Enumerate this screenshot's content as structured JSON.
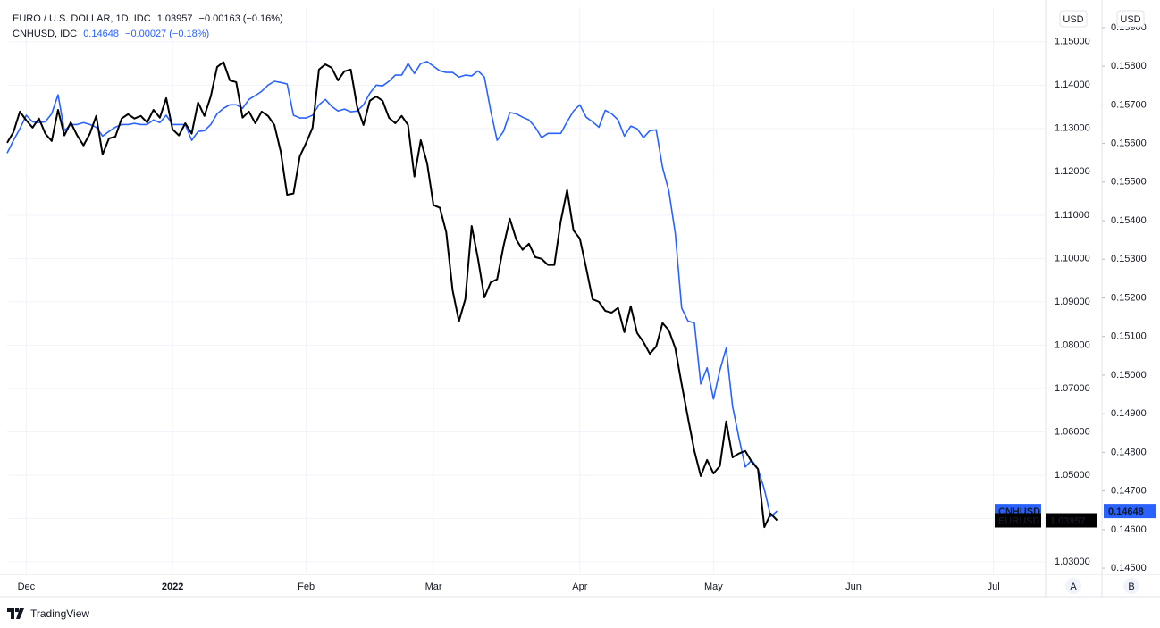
{
  "chart_data": {
    "type": "line",
    "x": [
      0,
      1,
      2,
      3,
      4,
      5,
      6,
      7,
      8,
      9,
      10,
      11,
      12,
      13,
      14,
      15,
      16,
      17,
      18,
      19,
      20,
      21,
      22,
      23,
      24,
      25,
      26,
      27,
      28,
      29,
      30,
      31,
      32,
      33,
      34,
      35,
      36,
      37,
      38,
      39,
      40,
      41,
      42,
      43,
      44,
      45,
      46,
      47,
      48,
      49,
      50,
      51,
      52,
      53,
      54,
      55,
      56,
      57,
      58,
      59,
      60,
      61,
      62,
      63,
      64,
      65,
      66,
      67,
      68,
      69,
      70,
      71,
      72,
      73,
      74,
      75,
      76,
      77,
      78,
      79,
      80,
      81,
      82,
      83,
      84,
      85,
      86,
      87,
      88,
      89,
      90,
      91,
      92,
      93,
      94,
      95,
      96,
      97,
      98,
      99,
      100,
      101,
      102,
      103,
      104,
      105,
      106,
      107,
      108,
      109,
      110,
      111,
      112,
      113,
      114,
      115,
      116,
      117,
      118,
      119,
      120,
      121
    ],
    "xlim": [
      0,
      163.2
    ],
    "xticks": [
      {
        "value": 3,
        "label": "Dec"
      },
      {
        "value": 26,
        "label": "2022"
      },
      {
        "value": 47,
        "label": "Feb"
      },
      {
        "value": 67,
        "label": "Mar"
      },
      {
        "value": 90,
        "label": "Apr"
      },
      {
        "value": 111,
        "label": "May"
      },
      {
        "value": 133,
        "label": "Jun"
      },
      {
        "value": 155,
        "label": "Jul"
      }
    ],
    "ylim": [
      1.0271,
      1.158
    ],
    "yticks": [
      {
        "value": 1.03,
        "label": "1.03000"
      },
      {
        "value": 1.04,
        "label": "1.04000"
      },
      {
        "value": 1.05,
        "label": "1.05000"
      },
      {
        "value": 1.06,
        "label": "1.06000"
      },
      {
        "value": 1.07,
        "label": "1.07000"
      },
      {
        "value": 1.08,
        "label": "1.08000"
      },
      {
        "value": 1.09,
        "label": "1.09000"
      },
      {
        "value": 1.1,
        "label": "1.10000"
      },
      {
        "value": 1.11,
        "label": "1.11000"
      },
      {
        "value": 1.12,
        "label": "1.12000"
      },
      {
        "value": 1.13,
        "label": "1.13000"
      },
      {
        "value": 1.14,
        "label": "1.14000"
      },
      {
        "value": 1.15,
        "label": "1.15000"
      }
    ],
    "y2lim": [
      0.14484,
      0.15953
    ],
    "y2ticks": [
      {
        "value": 0.145,
        "label": "0.14500"
      },
      {
        "value": 0.146,
        "label": "0.14600"
      },
      {
        "value": 0.147,
        "label": "0.14700"
      },
      {
        "value": 0.148,
        "label": "0.14800"
      },
      {
        "value": 0.149,
        "label": "0.14900"
      },
      {
        "value": 0.15,
        "label": "0.15000"
      },
      {
        "value": 0.151,
        "label": "0.15100"
      },
      {
        "value": 0.152,
        "label": "0.15200"
      },
      {
        "value": 0.153,
        "label": "0.15300"
      },
      {
        "value": 0.154,
        "label": "0.15400"
      },
      {
        "value": 0.155,
        "label": "0.15500"
      },
      {
        "value": 0.156,
        "label": "0.15600"
      },
      {
        "value": 0.157,
        "label": "0.15700"
      },
      {
        "value": 0.158,
        "label": "0.15800"
      },
      {
        "value": 0.159,
        "label": "0.15900"
      }
    ],
    "y_unit": "USD",
    "y2_unit": "USD",
    "axis_buttons": [
      "A",
      "B"
    ],
    "grid": true,
    "series": [
      {
        "name": "EURUSD",
        "header_label": "EURO / U.S. DOLLAR, 1D, IDC",
        "change": "−0.00163 (−0.16%)",
        "color": "#000000",
        "values": [
          1.1267,
          1.1292,
          1.1339,
          1.1319,
          1.1302,
          1.1323,
          1.1288,
          1.1271,
          1.1343,
          1.1284,
          1.1314,
          1.1284,
          1.1261,
          1.1288,
          1.1329,
          1.124,
          1.1277,
          1.1281,
          1.1323,
          1.1333,
          1.1323,
          1.1329,
          1.1314,
          1.1343,
          1.1325,
          1.137,
          1.1298,
          1.1284,
          1.1312,
          1.1288,
          1.136,
          1.1329,
          1.1374,
          1.1442,
          1.1453,
          1.1411,
          1.1407,
          1.1325,
          1.1339,
          1.1312,
          1.1339,
          1.1329,
          1.1308,
          1.1246,
          1.1147,
          1.115,
          1.1236,
          1.1267,
          1.1302,
          1.1436,
          1.1448,
          1.144,
          1.1411,
          1.1432,
          1.1436,
          1.135,
          1.1308,
          1.1364,
          1.1374,
          1.1364,
          1.1325,
          1.1312,
          1.1329,
          1.1308,
          1.1189,
          1.1273,
          1.122,
          1.1123,
          1.1117,
          1.1061,
          1.0927,
          1.0855,
          1.0906,
          1.1075,
          1.0999,
          1.091,
          1.0945,
          1.0952,
          1.1028,
          1.1092,
          1.1044,
          1.102,
          1.1034,
          1.1003,
          1.0999,
          1.0985,
          1.0985,
          1.1086,
          1.1158,
          1.1065,
          1.1046,
          1.0978,
          1.0906,
          1.09,
          1.0879,
          1.0875,
          1.0886,
          1.083,
          1.089,
          1.0828,
          1.0807,
          1.078,
          1.0797,
          1.0851,
          1.0834,
          1.0793,
          1.071,
          1.0632,
          1.0556,
          1.0498,
          1.0535,
          1.0504,
          1.0521,
          1.0624,
          1.0541,
          1.055,
          1.0556,
          1.0531,
          1.0514,
          1.038,
          1.0411,
          1.03957
        ]
      },
      {
        "name": "CNHUSD",
        "header_label": "CNHUSD, IDC",
        "change": "−0.00027 (−0.18%)",
        "color": "#2962ff",
        "axis": "y2",
        "values": [
          0.15575,
          0.15608,
          0.15638,
          0.15673,
          0.15656,
          0.15654,
          0.15656,
          0.15677,
          0.15726,
          0.15633,
          0.15649,
          0.15649,
          0.15654,
          0.15649,
          0.15642,
          0.15619,
          0.15631,
          0.15642,
          0.15649,
          0.15649,
          0.15652,
          0.15649,
          0.15649,
          0.15661,
          0.15654,
          0.15673,
          0.15649,
          0.15649,
          0.15649,
          0.15608,
          0.15631,
          0.15633,
          0.15649,
          0.15677,
          0.15691,
          0.157,
          0.157,
          0.15691,
          0.15714,
          0.15724,
          0.15735,
          0.15751,
          0.15761,
          0.15758,
          0.15754,
          0.15673,
          0.15666,
          0.15666,
          0.15673,
          0.157,
          0.15714,
          0.15696,
          0.15684,
          0.15689,
          0.15682,
          0.15684,
          0.157,
          0.1573,
          0.15751,
          0.15749,
          0.15761,
          0.15777,
          0.15777,
          0.15807,
          0.15781,
          0.15807,
          0.15812,
          0.158,
          0.15788,
          0.15784,
          0.15784,
          0.15772,
          0.15777,
          0.15775,
          0.15788,
          0.15772,
          0.15684,
          0.15608,
          0.15631,
          0.1568,
          0.15677,
          0.15668,
          0.15661,
          0.15642,
          0.15615,
          0.15626,
          0.15626,
          0.15626,
          0.15656,
          0.15684,
          0.157,
          0.15668,
          0.15656,
          0.15642,
          0.15686,
          0.15677,
          0.15661,
          0.15619,
          0.15645,
          0.15638,
          0.15615,
          0.15633,
          0.15635,
          0.15538,
          0.15476,
          0.15367,
          0.15174,
          0.1514,
          0.15135,
          0.14977,
          0.15019,
          0.14938,
          0.15012,
          0.1507,
          0.14919,
          0.14838,
          0.14762,
          0.1478,
          0.14757,
          0.14704,
          0.14634,
          0.14648
        ]
      }
    ]
  },
  "footer": "TradingView"
}
